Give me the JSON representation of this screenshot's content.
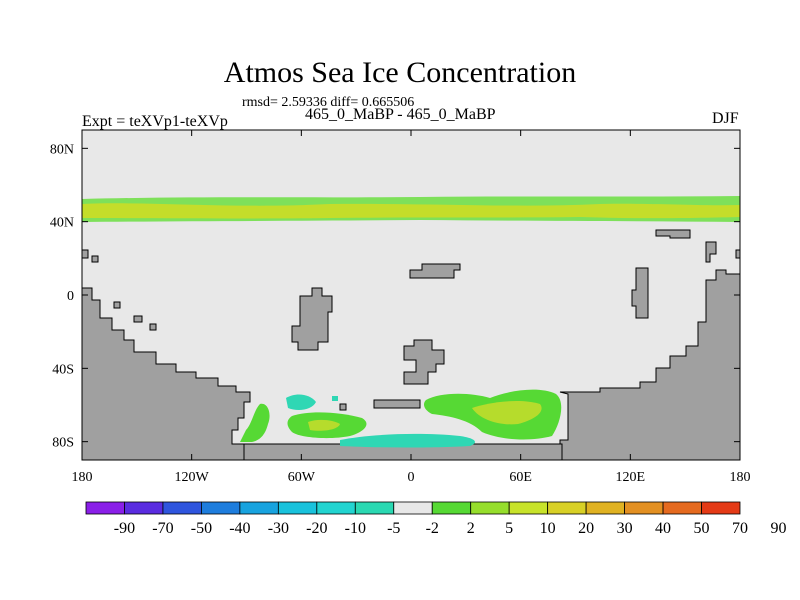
{
  "header": {
    "title": "Atmos Sea Ice Concentration",
    "stats": "rmsd= 2.59336 diff= 0.665506",
    "subtitle": "465_0_MaBP - 465_0_MaBP",
    "experiment": "Expt = teXVp1-teXVp",
    "season": "DJF"
  },
  "map": {
    "lon_range": [
      -180,
      180
    ],
    "lat_range": [
      -90,
      90
    ],
    "x_ticks": [
      {
        "lon": -180,
        "label": "180"
      },
      {
        "lon": -120,
        "label": "120W"
      },
      {
        "lon": -60,
        "label": "60W"
      },
      {
        "lon": 0,
        "label": "0"
      },
      {
        "lon": 60,
        "label": "60E"
      },
      {
        "lon": 120,
        "label": "120E"
      },
      {
        "lon": 180,
        "label": "180"
      }
    ],
    "y_ticks": [
      {
        "lat": 80,
        "label": "80N"
      },
      {
        "lat": 40,
        "label": "40N"
      },
      {
        "lat": 0,
        "label": "0"
      },
      {
        "lat": -40,
        "label": "40S"
      },
      {
        "lat": -80,
        "label": "80S"
      }
    ],
    "colors": {
      "background_field": "#e8e8e8",
      "land": "#a0a0a0",
      "coast": "#000000",
      "band_outer": "#7ee05a",
      "band_inner": "#c4dd2a",
      "positive_green": "#56d934",
      "positive_yellowgreen": "#b6dc2c",
      "negative_teal": "#2fd7b4"
    }
  },
  "colorbar": {
    "colors": [
      "#8a1fe8",
      "#5a2ce0",
      "#2f55de",
      "#1e7ddd",
      "#18a3df",
      "#19c2dc",
      "#22d4d0",
      "#2ad8b2",
      "#e8e8e8",
      "#56d934",
      "#96de2c",
      "#c8e32a",
      "#d8d026",
      "#e0b222",
      "#e39022",
      "#e56a1f",
      "#e43a16"
    ],
    "labels": [
      "-90",
      "-70",
      "-50",
      "-40",
      "-30",
      "-20",
      "-10",
      "-5",
      "-2",
      "2",
      "5",
      "10",
      "20",
      "30",
      "40",
      "50",
      "70",
      "90"
    ]
  }
}
